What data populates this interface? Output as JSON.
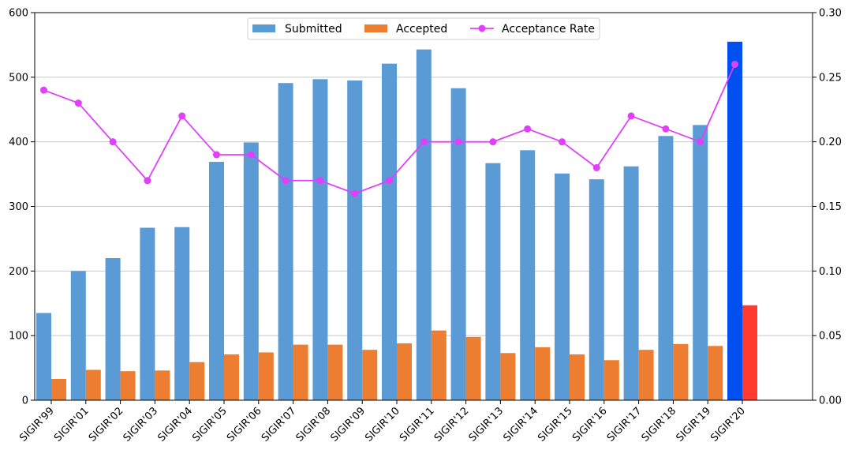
{
  "chart_data": {
    "type": "bar",
    "categories": [
      "SIGIR'99",
      "SIGIR'01",
      "SIGIR'02",
      "SIGIR'03",
      "SIGIR'04",
      "SIGIR'05",
      "SIGIR'06",
      "SIGIR'07",
      "SIGIR'08",
      "SIGIR'09",
      "SIGIR'10",
      "SIGIR'11",
      "SIGIR'12",
      "SIGIR'13",
      "SIGIR'14",
      "SIGIR'15",
      "SIGIR'16",
      "SIGIR'17",
      "SIGIR'18",
      "SIGIR'19",
      "SIGIR'20"
    ],
    "series": [
      {
        "name": "Submitted",
        "values": [
          135,
          200,
          220,
          267,
          268,
          369,
          399,
          491,
          497,
          495,
          521,
          543,
          483,
          367,
          387,
          351,
          342,
          362,
          409,
          426,
          555
        ]
      },
      {
        "name": "Accepted",
        "values": [
          33,
          47,
          45,
          46,
          59,
          71,
          74,
          86,
          86,
          78,
          88,
          108,
          98,
          73,
          82,
          71,
          62,
          78,
          87,
          84,
          147
        ]
      },
      {
        "name": "Acceptance Rate",
        "values": [
          0.24,
          0.23,
          0.2,
          0.17,
          0.22,
          0.19,
          0.19,
          0.17,
          0.17,
          0.16,
          0.17,
          0.2,
          0.2,
          0.2,
          0.21,
          0.2,
          0.18,
          0.22,
          0.21,
          0.2,
          0.26
        ]
      }
    ],
    "ylim": [
      0,
      600
    ],
    "y2lim": [
      0,
      0.3
    ],
    "yticks": [
      0,
      100,
      200,
      300,
      400,
      500,
      600
    ],
    "y2ticks": [
      "0.00",
      "0.05",
      "0.10",
      "0.15",
      "0.20",
      "0.25",
      "0.30"
    ],
    "legend": {
      "position": "top-center",
      "entries": [
        "Submitted",
        "Accepted",
        "Acceptance Rate"
      ]
    },
    "grid": "horizontal",
    "colors": {
      "submitted": "#5b9bd5",
      "accepted": "#ed7d31",
      "submitted_highlight": "#0050ef",
      "accepted_highlight": "#ff3b30",
      "rate": "#e040fb",
      "grid": "#c8c8c8"
    }
  }
}
